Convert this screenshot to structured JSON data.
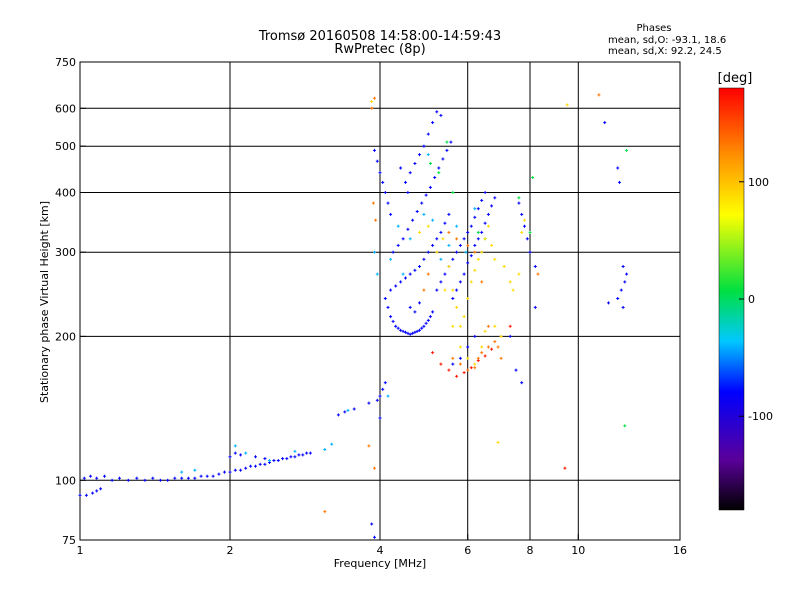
{
  "chart_data": {
    "type": "scatter",
    "title": "Tromsø 20160508 14:58:00-14:59:43",
    "subtitle": "RwPretec (8p)",
    "xlabel": "Frequency [MHz]",
    "ylabel": "Stationary phase Virtual Height [km]",
    "xscale": "log",
    "yscale": "log",
    "xlim": [
      1,
      16
    ],
    "ylim": [
      75,
      750
    ],
    "xticks": [
      1,
      2,
      4,
      6,
      8,
      10,
      16
    ],
    "yticks": [
      75,
      100,
      200,
      300,
      400,
      500,
      600,
      750
    ],
    "x_gridlines": [
      2,
      4,
      6,
      8,
      10
    ],
    "y_gridlines": [
      100,
      200,
      300,
      400,
      500,
      600
    ],
    "grid": true,
    "stats": {
      "title": "Phases",
      "o_line": "mean, sd,O: -93.1, 18.6",
      "x_line": "mean, sd,X:  92.2, 24.5"
    },
    "colorbar": {
      "label": "[deg]",
      "range": [
        -180,
        180
      ],
      "ticks": [
        100,
        0,
        -100
      ],
      "colormap": "rainbow"
    },
    "series": [
      {
        "description_phase_deg": -100,
        "points": [
          [
            1.0,
            93
          ],
          [
            1.03,
            93
          ],
          [
            1.06,
            94
          ],
          [
            1.08,
            95
          ],
          [
            1.1,
            96
          ],
          [
            1.02,
            101
          ],
          [
            1.05,
            102
          ],
          [
            1.08,
            101
          ],
          [
            1.12,
            102
          ],
          [
            1.16,
            100
          ],
          [
            1.2,
            101
          ],
          [
            1.25,
            100
          ],
          [
            1.3,
            101
          ],
          [
            1.35,
            100
          ],
          [
            1.4,
            101
          ],
          [
            1.45,
            100
          ],
          [
            1.5,
            100
          ],
          [
            1.55,
            101
          ],
          [
            1.6,
            101
          ],
          [
            1.65,
            101
          ],
          [
            1.7,
            101
          ],
          [
            1.75,
            102
          ],
          [
            1.8,
            102
          ],
          [
            1.85,
            102
          ],
          [
            1.9,
            103
          ],
          [
            1.95,
            104
          ],
          [
            2.0,
            104
          ],
          [
            2.05,
            105
          ],
          [
            2.1,
            105
          ],
          [
            2.15,
            106
          ],
          [
            2.2,
            107
          ],
          [
            2.25,
            107
          ],
          [
            2.3,
            108
          ],
          [
            2.35,
            108
          ],
          [
            2.4,
            109
          ],
          [
            2.45,
            110
          ],
          [
            2.5,
            110
          ],
          [
            2.55,
            111
          ],
          [
            2.6,
            111
          ],
          [
            2.65,
            112
          ],
          [
            2.7,
            112
          ],
          [
            2.75,
            113
          ],
          [
            2.8,
            113
          ],
          [
            2.85,
            114
          ],
          [
            2.9,
            114
          ],
          [
            2.0,
            112
          ],
          [
            2.05,
            114
          ],
          [
            2.1,
            113
          ],
          [
            2.25,
            112
          ],
          [
            2.35,
            111
          ],
          [
            3.3,
            137
          ],
          [
            3.4,
            139
          ],
          [
            3.55,
            141
          ],
          [
            3.8,
            145
          ],
          [
            3.85,
            81
          ],
          [
            3.95,
            147
          ],
          [
            4.0,
            150
          ],
          [
            4.05,
            155
          ],
          [
            4.1,
            160
          ],
          [
            3.9,
            490
          ],
          [
            3.95,
            465
          ],
          [
            4.0,
            440
          ],
          [
            4.05,
            420
          ],
          [
            4.1,
            400
          ],
          [
            4.15,
            380
          ],
          [
            4.2,
            360
          ],
          [
            4.1,
            240
          ],
          [
            4.15,
            230
          ],
          [
            4.2,
            220
          ],
          [
            4.25,
            215
          ],
          [
            4.3,
            210
          ],
          [
            4.35,
            208
          ],
          [
            4.4,
            206
          ],
          [
            4.45,
            205
          ],
          [
            4.5,
            204
          ],
          [
            4.55,
            203
          ],
          [
            4.6,
            202
          ],
          [
            4.65,
            203
          ],
          [
            4.7,
            204
          ],
          [
            4.75,
            205
          ],
          [
            4.8,
            206
          ],
          [
            4.85,
            208
          ],
          [
            4.9,
            210
          ],
          [
            4.95,
            213
          ],
          [
            5.0,
            216
          ],
          [
            5.05,
            220
          ],
          [
            5.1,
            225
          ],
          [
            4.2,
            250
          ],
          [
            4.3,
            255
          ],
          [
            4.4,
            260
          ],
          [
            4.5,
            265
          ],
          [
            4.6,
            270
          ],
          [
            4.7,
            275
          ],
          [
            4.8,
            280
          ],
          [
            4.9,
            290
          ],
          [
            5.0,
            300
          ],
          [
            5.1,
            310
          ],
          [
            5.2,
            320
          ],
          [
            5.3,
            330
          ],
          [
            5.4,
            345
          ],
          [
            5.5,
            360
          ],
          [
            4.25,
            300
          ],
          [
            4.35,
            310
          ],
          [
            4.45,
            320
          ],
          [
            4.55,
            335
          ],
          [
            4.65,
            350
          ],
          [
            4.75,
            365
          ],
          [
            4.85,
            380
          ],
          [
            4.95,
            395
          ],
          [
            5.05,
            410
          ],
          [
            5.15,
            430
          ],
          [
            5.25,
            450
          ],
          [
            5.35,
            470
          ],
          [
            5.45,
            490
          ],
          [
            5.55,
            510
          ],
          [
            4.5,
            420
          ],
          [
            4.6,
            440
          ],
          [
            4.7,
            460
          ],
          [
            4.8,
            480
          ],
          [
            4.9,
            500
          ],
          [
            5.0,
            530
          ],
          [
            5.1,
            560
          ],
          [
            5.2,
            590
          ],
          [
            5.3,
            580
          ],
          [
            4.4,
            450
          ],
          [
            4.55,
            400
          ],
          [
            4.6,
            230
          ],
          [
            4.7,
            225
          ],
          [
            4.8,
            235
          ],
          [
            5.2,
            250
          ],
          [
            5.3,
            260
          ],
          [
            5.4,
            270
          ],
          [
            5.5,
            280
          ],
          [
            5.6,
            290
          ],
          [
            5.7,
            300
          ],
          [
            5.8,
            310
          ],
          [
            5.9,
            320
          ],
          [
            6.0,
            330
          ],
          [
            6.1,
            340
          ],
          [
            6.2,
            355
          ],
          [
            6.3,
            370
          ],
          [
            6.4,
            385
          ],
          [
            6.5,
            400
          ],
          [
            5.6,
            240
          ],
          [
            5.7,
            250
          ],
          [
            5.8,
            260
          ],
          [
            5.9,
            270
          ],
          [
            6.0,
            285
          ],
          [
            6.1,
            295
          ],
          [
            6.2,
            310
          ],
          [
            6.3,
            320
          ],
          [
            6.4,
            330
          ],
          [
            6.5,
            345
          ],
          [
            6.6,
            360
          ],
          [
            6.7,
            375
          ],
          [
            6.8,
            390
          ],
          [
            7.6,
            380
          ],
          [
            7.7,
            360
          ],
          [
            7.8,
            340
          ],
          [
            7.9,
            320
          ],
          [
            8.0,
            300
          ],
          [
            8.2,
            280
          ],
          [
            7.3,
            200
          ],
          [
            7.5,
            170
          ],
          [
            7.7,
            160
          ],
          [
            8.2,
            230
          ],
          [
            4.0,
            135
          ],
          [
            3.9,
            76
          ],
          [
            5.6,
            175
          ],
          [
            5.8,
            180
          ],
          [
            6.0,
            190
          ],
          [
            6.2,
            200
          ],
          [
            11.5,
            235
          ],
          [
            12.0,
            240
          ],
          [
            12.2,
            250
          ],
          [
            12.4,
            260
          ],
          [
            12.5,
            270
          ],
          [
            12.3,
            280
          ],
          [
            11.3,
            560
          ],
          [
            12.0,
            450
          ],
          [
            12.1,
            420
          ],
          [
            12.3,
            230
          ]
        ]
      },
      {
        "description_phase_deg": -60,
        "points": [
          [
            1.6,
            104
          ],
          [
            1.7,
            105
          ],
          [
            2.05,
            118
          ],
          [
            2.15,
            114
          ],
          [
            2.4,
            110
          ],
          [
            2.7,
            115
          ],
          [
            3.1,
            116
          ],
          [
            3.2,
            119
          ],
          [
            3.45,
            140
          ],
          [
            3.9,
            300
          ],
          [
            3.95,
            270
          ],
          [
            4.15,
            150
          ],
          [
            4.2,
            290
          ],
          [
            4.35,
            340
          ],
          [
            4.45,
            270
          ],
          [
            4.6,
            320
          ],
          [
            4.9,
            360
          ],
          [
            5.0,
            480
          ],
          [
            5.1,
            350
          ],
          [
            5.3,
            290
          ],
          [
            5.5,
            310
          ],
          [
            5.7,
            340
          ],
          [
            5.95,
            300
          ],
          [
            6.2,
            370
          ]
        ]
      },
      {
        "description_phase_deg": 0,
        "points": [
          [
            5.05,
            460
          ],
          [
            5.25,
            440
          ],
          [
            5.45,
            510
          ],
          [
            5.6,
            400
          ],
          [
            6.3,
            330
          ],
          [
            6.5,
            320
          ],
          [
            7.6,
            390
          ],
          [
            8.0,
            330
          ],
          [
            8.1,
            430
          ],
          [
            12.5,
            490
          ],
          [
            12.4,
            130
          ]
        ]
      },
      {
        "description_phase_deg": 80,
        "points": [
          [
            4.8,
            330
          ],
          [
            5.0,
            340
          ],
          [
            5.2,
            300
          ],
          [
            5.35,
            320
          ],
          [
            5.5,
            280
          ],
          [
            5.6,
            250
          ],
          [
            5.7,
            230
          ],
          [
            5.8,
            210
          ],
          [
            5.9,
            220
          ],
          [
            6.0,
            240
          ],
          [
            6.1,
            260
          ],
          [
            6.2,
            275
          ],
          [
            6.3,
            290
          ],
          [
            6.4,
            300
          ],
          [
            6.5,
            320
          ],
          [
            6.6,
            340
          ],
          [
            6.7,
            310
          ],
          [
            6.8,
            290
          ],
          [
            7.1,
            280
          ],
          [
            7.3,
            260
          ],
          [
            7.4,
            250
          ],
          [
            7.6,
            270
          ],
          [
            7.7,
            330
          ],
          [
            7.8,
            350
          ],
          [
            5.4,
            250
          ],
          [
            5.6,
            210
          ],
          [
            5.8,
            190
          ],
          [
            6.0,
            180
          ],
          [
            6.2,
            175
          ],
          [
            6.4,
            190
          ],
          [
            6.5,
            205
          ],
          [
            6.8,
            210
          ],
          [
            7.0,
            200
          ],
          [
            9.5,
            610
          ],
          [
            6.9,
            120
          ],
          [
            3.85,
            620
          ]
        ]
      },
      {
        "description_phase_deg": 130,
        "points": [
          [
            3.85,
            600
          ],
          [
            3.9,
            630
          ],
          [
            3.88,
            380
          ],
          [
            3.92,
            350
          ],
          [
            5.6,
            180
          ],
          [
            5.8,
            175
          ],
          [
            6.0,
            170
          ],
          [
            6.2,
            172
          ],
          [
            6.3,
            180
          ],
          [
            6.4,
            185
          ],
          [
            6.6,
            190
          ],
          [
            6.8,
            195
          ],
          [
            6.9,
            190
          ],
          [
            7.0,
            180
          ],
          [
            5.5,
            330
          ],
          [
            5.7,
            320
          ],
          [
            6.0,
            310
          ],
          [
            6.2,
            300
          ],
          [
            6.4,
            260
          ],
          [
            6.6,
            210
          ],
          [
            4.9,
            250
          ],
          [
            5.0,
            270
          ],
          [
            3.9,
            106
          ],
          [
            8.3,
            270
          ],
          [
            3.8,
            118
          ],
          [
            11.0,
            640
          ],
          [
            3.1,
            86
          ]
        ]
      },
      {
        "description_phase_deg": 170,
        "points": [
          [
            5.1,
            185
          ],
          [
            5.3,
            175
          ],
          [
            5.5,
            170
          ],
          [
            5.7,
            165
          ],
          [
            5.9,
            168
          ],
          [
            6.1,
            172
          ],
          [
            6.3,
            178
          ],
          [
            6.5,
            182
          ],
          [
            6.7,
            188
          ],
          [
            7.3,
            210
          ],
          [
            9.4,
            106
          ]
        ]
      }
    ]
  }
}
